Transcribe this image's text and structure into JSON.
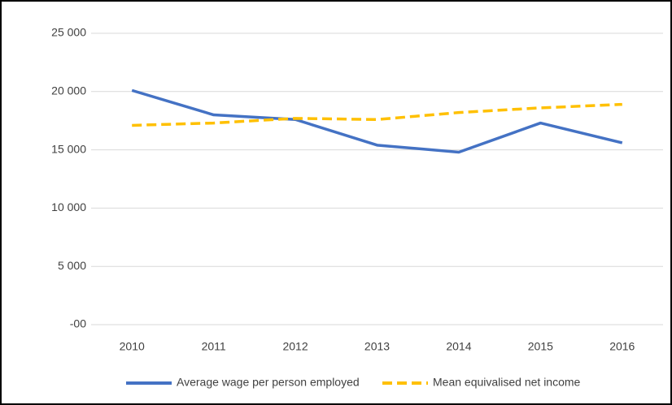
{
  "chart_data": {
    "type": "line",
    "categories": [
      "2010",
      "2011",
      "2012",
      "2013",
      "2014",
      "2015",
      "2016"
    ],
    "series": [
      {
        "name": "Average wage per person employed",
        "color": "#4472c4",
        "dash": false,
        "values": [
          20100,
          18000,
          17600,
          15400,
          14800,
          17300,
          15600
        ]
      },
      {
        "name": "Mean equivalised net income",
        "color": "#ffc000",
        "dash": true,
        "values": [
          17100,
          17300,
          17700,
          17600,
          18200,
          18600,
          18900
        ]
      }
    ],
    "ylim": [
      0,
      25000
    ],
    "yticks": [
      {
        "value": 0,
        "label": "-00"
      },
      {
        "value": 5000,
        "label": "5 000"
      },
      {
        "value": 10000,
        "label": "10 000"
      },
      {
        "value": 15000,
        "label": "15 000"
      },
      {
        "value": 20000,
        "label": "20 000"
      },
      {
        "value": 25000,
        "label": "25 000"
      }
    ],
    "grid": true,
    "legend": "bottom"
  }
}
